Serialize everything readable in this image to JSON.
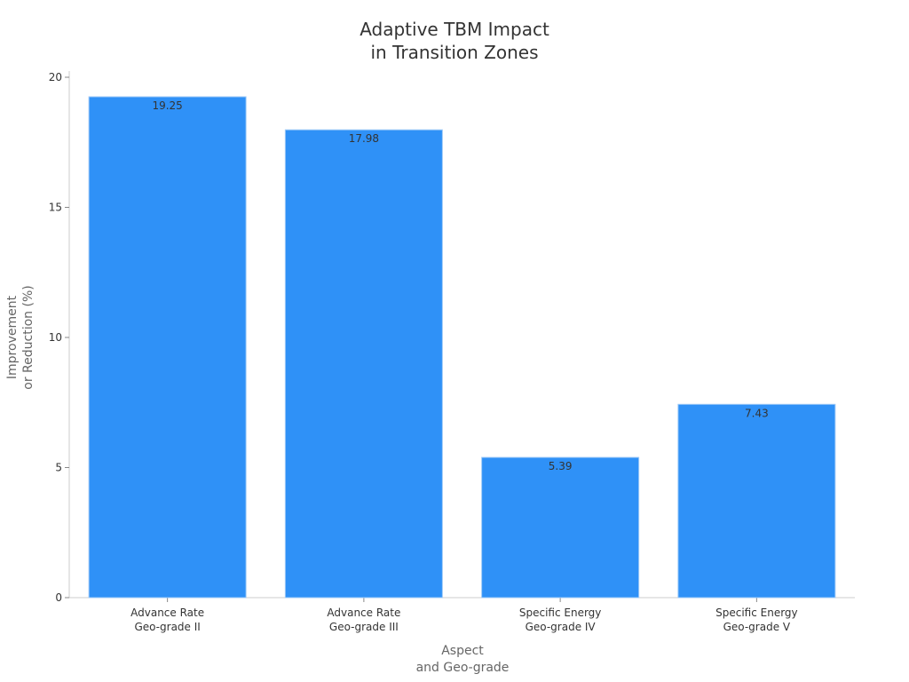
{
  "chart_data": {
    "type": "bar",
    "title_lines": [
      "Adaptive TBM Impact",
      "in Transition Zones"
    ],
    "xlabel_lines": [
      "Aspect",
      "and Geo-grade"
    ],
    "ylabel_lines": [
      "Improvement",
      "or Reduction (%)"
    ],
    "categories": [
      [
        "Advance Rate",
        "Geo-grade II"
      ],
      [
        "Advance Rate",
        "Geo-grade III"
      ],
      [
        "Specific Energy",
        "Geo-grade IV"
      ],
      [
        "Specific Energy",
        "Geo-grade V"
      ]
    ],
    "values": [
      19.25,
      17.98,
      5.39,
      7.43
    ],
    "data_labels": [
      "19.25",
      "17.98",
      "5.39",
      "7.43"
    ],
    "ylim": [
      0,
      20
    ],
    "yticks": [
      0,
      5,
      10,
      15,
      20
    ],
    "ytick_labels": [
      "0",
      "5",
      "10",
      "15",
      "20"
    ],
    "bar_color": "#2f91f7",
    "grid": false,
    "legend": "none"
  }
}
